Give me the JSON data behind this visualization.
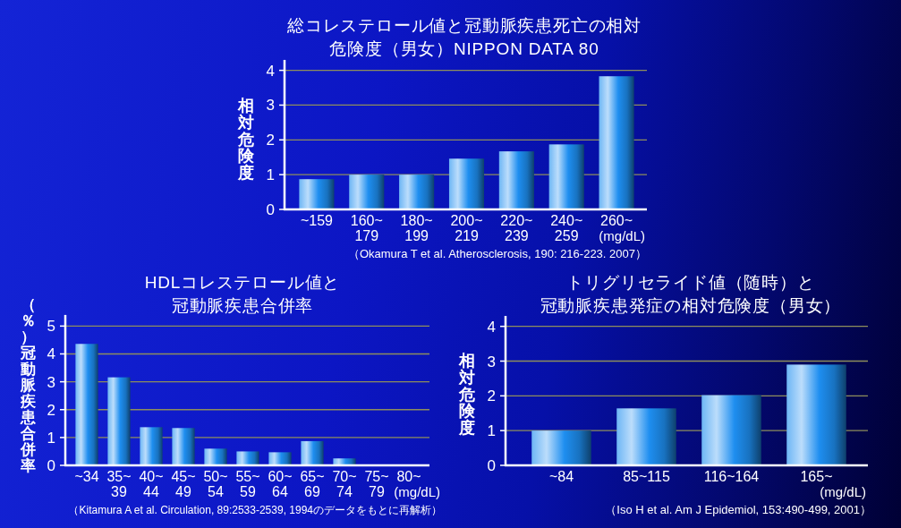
{
  "chart_data": [
    {
      "type": "bar",
      "title": "総コレステロール値と冠動脈疾患死亡の相対危険度（男女）NIPPON DATA 80",
      "ylabel": "相対危険度",
      "xlabel": "(mg/dL)",
      "categories": [
        "~159",
        "160~\n179",
        "180~\n199",
        "200~\n219",
        "220~\n239",
        "240~\n259",
        "260~"
      ],
      "values": [
        0.87,
        1.0,
        1.0,
        1.46,
        1.67,
        1.87,
        3.83
      ],
      "color": "#1e8ef0",
      "ylim": [
        0,
        4.3
      ],
      "yticks": [
        0,
        1,
        2,
        3,
        4
      ],
      "grid": "y",
      "annotations": [
        "（Okamura T et al. Atherosclerosis, 190: 216-223. 2007）"
      ]
    },
    {
      "type": "bar",
      "title": "HDLコレステロール値と冠動脈疾患合併率",
      "ylabel": "（％）冠動脈疾患合併率",
      "xlabel": "(mg/dL)",
      "categories": [
        "~34",
        "35~\n39",
        "40~\n44",
        "45~\n49",
        "50~\n54",
        "55~\n59",
        "60~\n64",
        "65~\n69",
        "70~\n74",
        "75~\n79",
        "80~"
      ],
      "values": [
        4.36,
        3.16,
        1.37,
        1.34,
        0.6,
        0.5,
        0.47,
        0.87,
        0.25,
        0,
        0
      ],
      "color": "#1e8ef0",
      "ylim": [
        0,
        5.4
      ],
      "yticks": [
        0,
        1,
        2,
        3,
        4,
        5
      ],
      "grid": "y",
      "annotations": [
        "（Kitamura A et al. Circulation, 89:2533-2539, 1994のデータをもとに再解析）"
      ]
    },
    {
      "type": "bar",
      "title": "トリグリセライド値（随時）と冠動脈疾患発症の相対危険度（男女）",
      "ylabel": "相対危険度",
      "xlabel": "(mg/dL)",
      "categories": [
        "~84",
        "85~115",
        "116~164",
        "165~"
      ],
      "values": [
        1.0,
        1.64,
        2.02,
        2.9
      ],
      "color": "#1e8ef0",
      "ylim": [
        0,
        4.3
      ],
      "yticks": [
        0,
        1,
        2,
        3,
        4
      ],
      "grid": "y",
      "annotations": [
        "（Iso H et al. Am J Epidemiol, 153:490-499, 2001）"
      ]
    }
  ]
}
